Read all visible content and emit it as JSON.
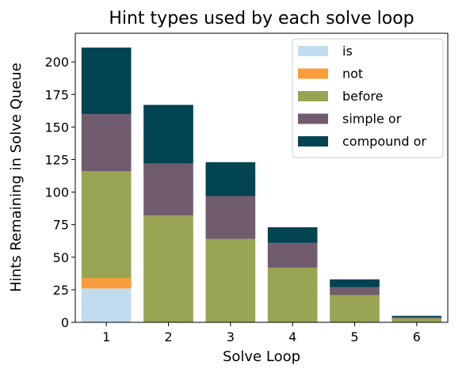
{
  "chart_data": {
    "type": "bar",
    "stacked": true,
    "title": "Hint types used by each solve loop",
    "xlabel": "Solve Loop",
    "ylabel": "Hints Remaining in Solve Queue",
    "categories": [
      "1",
      "2",
      "3",
      "4",
      "5",
      "6"
    ],
    "ylim": [
      0,
      222
    ],
    "yticks": [
      0,
      25,
      50,
      75,
      100,
      125,
      150,
      175,
      200
    ],
    "grid": false,
    "legend_position": "top-right",
    "series": [
      {
        "name": "is",
        "color": "#c0dcee",
        "values": [
          26,
          0,
          0,
          0,
          0,
          0
        ]
      },
      {
        "name": "not",
        "color": "#f99d3a",
        "values": [
          8,
          0,
          0,
          0,
          0,
          0
        ]
      },
      {
        "name": "before",
        "color": "#9aa455",
        "values": [
          82,
          82,
          64,
          42,
          21,
          3
        ]
      },
      {
        "name": "simple or",
        "color": "#715c6f",
        "values": [
          44,
          40,
          33,
          19,
          6,
          1
        ]
      },
      {
        "name": "compound or",
        "color": "#024451",
        "values": [
          51,
          45,
          26,
          12,
          6,
          1
        ]
      }
    ]
  }
}
